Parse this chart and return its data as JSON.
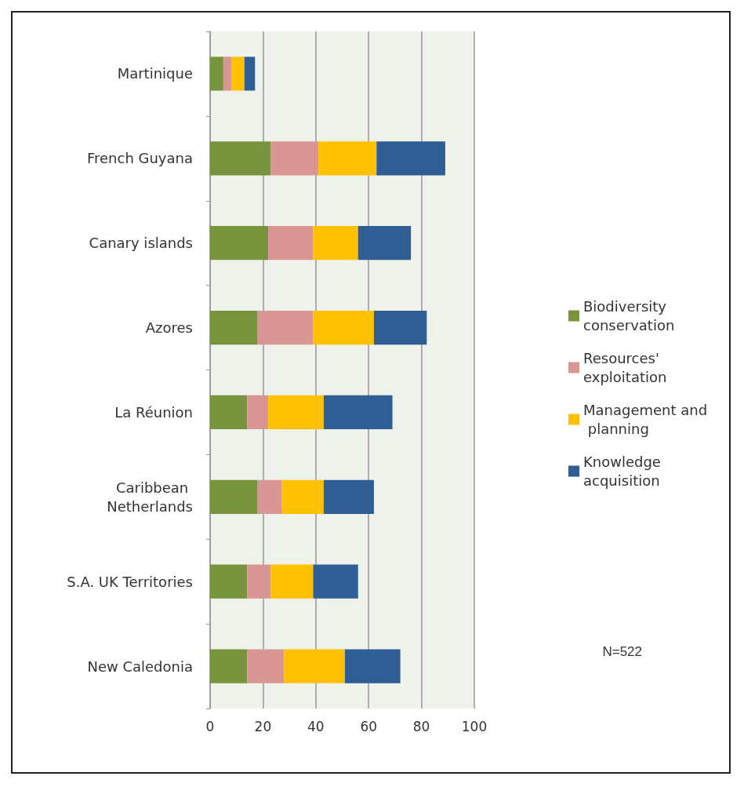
{
  "chart_data": {
    "type": "bar",
    "orientation": "horizontal",
    "stacked": true,
    "categories": [
      "Martinique",
      "French Guyana",
      "Canary islands",
      "Azores",
      "La Réunion",
      "Caribbean Netherlands",
      "S.A. UK Territories",
      "New Caledonia"
    ],
    "series": [
      {
        "name": "Biodiversity conservation",
        "color": "#77933c",
        "values": [
          5,
          23,
          22,
          18,
          14,
          18,
          14,
          14
        ]
      },
      {
        "name": "Resources' exploitation",
        "color": "#d99694",
        "values": [
          3,
          18,
          17,
          21,
          8,
          9,
          9,
          14
        ]
      },
      {
        "name": "Management and planning",
        "color": "#ffc000",
        "values": [
          5,
          22,
          17,
          23,
          21,
          16,
          16,
          23
        ]
      },
      {
        "name": "Knowledge acquisition",
        "color": "#2e5e94",
        "values": [
          4,
          26,
          20,
          20,
          26,
          19,
          17,
          21
        ]
      }
    ],
    "xlim": [
      0,
      100
    ],
    "xticks": [
      0,
      20,
      40,
      60,
      80,
      100
    ],
    "grid": "x",
    "legend": "right",
    "annotations": [
      "N=522"
    ]
  }
}
